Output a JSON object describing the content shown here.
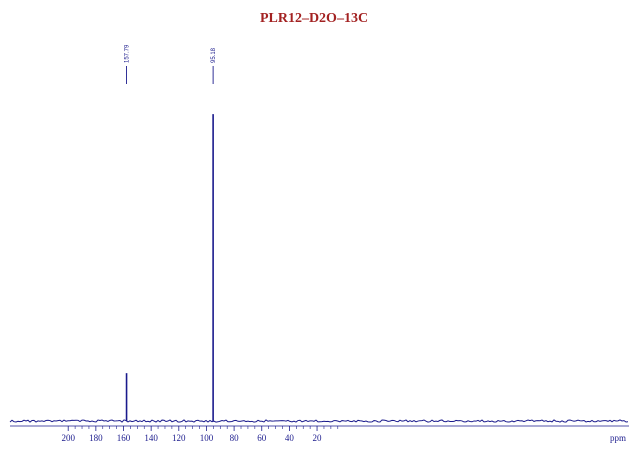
{
  "chart_data": {
    "type": "line",
    "title": "PLR12–D2O–13C",
    "xlabel": "ppm",
    "ylabel": "",
    "x_reversed": true,
    "xlim": [
      216,
      0
    ],
    "ylim": [
      0,
      1
    ],
    "x_ticks": [
      "200",
      "180",
      "160",
      "140",
      "120",
      "100",
      "80",
      "60",
      "40",
      "20"
    ],
    "peaks": [
      {
        "shift": 157.79,
        "label": "157.79",
        "intensity": 0.145
      },
      {
        "shift": 95.18,
        "label": "95.18",
        "intensity": 0.93
      }
    ],
    "grid": false,
    "colors": {
      "trace": "#1a1a8c",
      "title": "#a32222",
      "labels": "#1a1a8c"
    }
  }
}
